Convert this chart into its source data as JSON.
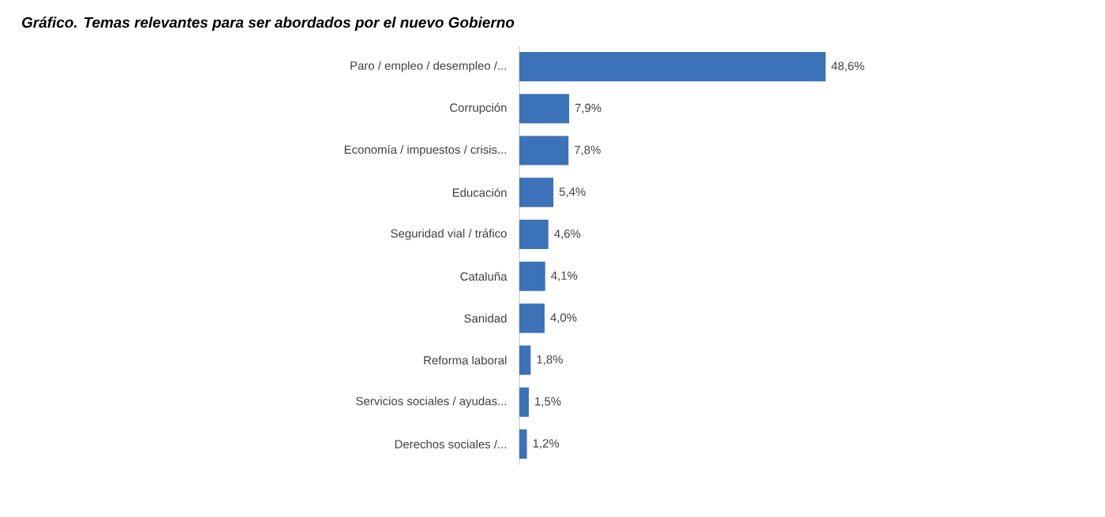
{
  "chart_data": {
    "type": "bar",
    "orientation": "horizontal",
    "title": "Gráfico. Temas relevantes para ser abordados por el nuevo Gobierno",
    "categories": [
      "Paro / empleo / desempleo /...",
      "Corrupción",
      "Economía / impuestos / crisis...",
      "Educación",
      "Seguridad vial / tráfico",
      "Cataluña",
      "Sanidad",
      "Reforma laboral",
      "Servicios sociales / ayudas...",
      "Derechos sociales /..."
    ],
    "values": [
      48.6,
      7.9,
      7.8,
      5.4,
      4.6,
      4.1,
      4.0,
      1.8,
      1.5,
      1.2
    ],
    "value_labels": [
      "48,6%",
      "7,9%",
      "7,8%",
      "5,4%",
      "4,6%",
      "4,1%",
      "4,0%",
      "1,8%",
      "1,5%",
      "1,2%"
    ],
    "color": "#3c72b8"
  }
}
